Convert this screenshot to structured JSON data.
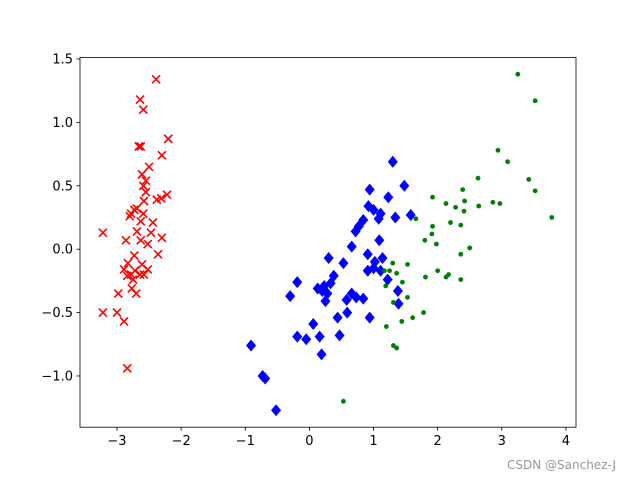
{
  "chart_data": {
    "type": "scatter",
    "xlim": [
      -3.577,
      4.157
    ],
    "ylim": [
      -1.404,
      1.511
    ],
    "xticks": [
      {
        "value": -3,
        "label": "−3"
      },
      {
        "value": -2,
        "label": "−2"
      },
      {
        "value": -1,
        "label": "−1"
      },
      0,
      1,
      2,
      3,
      4
    ],
    "yticks": [
      {
        "value": -1.0,
        "label": "−1.0"
      },
      {
        "value": -0.5,
        "label": "−0.5"
      },
      {
        "value": 0.0,
        "label": "0.0"
      },
      {
        "value": 0.5,
        "label": "0.5"
      },
      {
        "value": 1.0,
        "label": "1.0"
      },
      {
        "value": 1.5,
        "label": "1.5"
      }
    ],
    "series": [
      {
        "color": "#ff0000",
        "marker": "x",
        "x": [
          -2.39,
          -2.64,
          -2.59,
          -2.2,
          -2.66,
          -2.63,
          -2.3,
          -2.5,
          -2.61,
          -2.55,
          -2.59,
          -2.22,
          -2.55,
          -2.38,
          -2.31,
          -2.58,
          -2.73,
          -2.69,
          -2.78,
          -2.8,
          -2.59,
          -2.44,
          -2.63,
          -3.22,
          -2.69,
          -2.47,
          -2.3,
          -2.86,
          -2.63,
          -2.52,
          -2.36,
          -2.73,
          -2.83,
          -2.61,
          -2.89,
          -2.52,
          -2.72,
          -2.78,
          -2.84,
          -2.64,
          -2.75,
          -2.58,
          -2.77,
          -2.98,
          -2.7,
          -3.0,
          -3.22,
          -2.89,
          -2.84
        ],
        "values": [
          1.34,
          1.18,
          1.1,
          0.87,
          0.81,
          0.81,
          0.74,
          0.65,
          0.59,
          0.54,
          0.5,
          0.43,
          0.45,
          0.39,
          0.4,
          0.38,
          0.31,
          0.32,
          0.28,
          0.26,
          0.28,
          0.21,
          0.22,
          0.13,
          0.14,
          0.13,
          0.09,
          0.07,
          0.07,
          0.04,
          -0.04,
          -0.05,
          -0.11,
          -0.12,
          -0.16,
          -0.16,
          -0.17,
          -0.2,
          -0.21,
          -0.2,
          -0.24,
          -0.2,
          -0.31,
          -0.35,
          -0.35,
          -0.5,
          -0.5,
          -0.57,
          -0.94
        ]
      },
      {
        "color": "#0000ff",
        "marker": "D",
        "x": [
          1.3,
          1.48,
          0.94,
          1.23,
          0.92,
          1.0,
          1.11,
          0.84,
          1.08,
          1.34,
          1.58,
          0.77,
          0.72,
          1.09,
          0.66,
          0.3,
          0.91,
          1.02,
          1.14,
          0.53,
          1.0,
          -0.19,
          0.38,
          1.11,
          0.33,
          1.22,
          0.91,
          0.13,
          0.23,
          0.28,
          0.2,
          -0.3,
          0.66,
          0.73,
          1.38,
          0.25,
          0.58,
          0.84,
          1.39,
          0.59,
          0.44,
          0.94,
          0.06,
          -0.19,
          -0.05,
          0.16,
          0.47,
          0.19,
          -0.91,
          -0.73,
          -0.69,
          -0.52
        ],
        "values": [
          0.69,
          0.5,
          0.47,
          0.41,
          0.34,
          0.31,
          0.28,
          0.23,
          0.24,
          0.25,
          0.27,
          0.18,
          0.14,
          0.07,
          0.02,
          -0.07,
          -0.04,
          -0.1,
          -0.07,
          -0.11,
          -0.15,
          -0.26,
          -0.21,
          -0.17,
          -0.27,
          -0.24,
          -0.17,
          -0.31,
          -0.29,
          -0.35,
          -0.33,
          -0.37,
          -0.35,
          -0.38,
          -0.33,
          -0.41,
          -0.4,
          -0.39,
          -0.43,
          -0.5,
          -0.54,
          -0.54,
          -0.59,
          -0.69,
          -0.71,
          -0.69,
          -0.68,
          -0.83,
          -0.76,
          -1.0,
          -1.02,
          -1.27
        ]
      },
      {
        "color": "#008000",
        "marker": "o",
        "x": [
          3.25,
          3.52,
          2.94,
          3.09,
          3.42,
          2.63,
          3.52,
          2.39,
          1.92,
          2.13,
          2.42,
          2.28,
          2.86,
          2.97,
          2.64,
          2.41,
          3.78,
          1.66,
          2.2,
          1.92,
          2.36,
          1.91,
          1.8,
          1.98,
          2.5,
          2.36,
          1.3,
          1.53,
          1.17,
          1.25,
          1.36,
          2.0,
          2.17,
          1.81,
          2.13,
          2.36,
          1.45,
          1.19,
          1.53,
          1.31,
          1.78,
          1.61,
          1.44,
          1.2,
          1.31,
          1.36,
          0.53
        ],
        "values": [
          1.38,
          1.17,
          0.78,
          0.69,
          0.55,
          0.56,
          0.46,
          0.47,
          0.41,
          0.36,
          0.38,
          0.33,
          0.37,
          0.36,
          0.34,
          0.3,
          0.25,
          0.24,
          0.21,
          0.18,
          0.19,
          0.12,
          0.07,
          0.04,
          0.01,
          -0.04,
          -0.11,
          -0.12,
          -0.17,
          -0.17,
          -0.19,
          -0.17,
          -0.2,
          -0.22,
          -0.22,
          -0.24,
          -0.26,
          -0.29,
          -0.38,
          -0.42,
          -0.5,
          -0.54,
          -0.57,
          -0.61,
          -0.76,
          -0.78,
          -1.2
        ]
      }
    ]
  },
  "watermark": "CSDN @Sanchez-J"
}
